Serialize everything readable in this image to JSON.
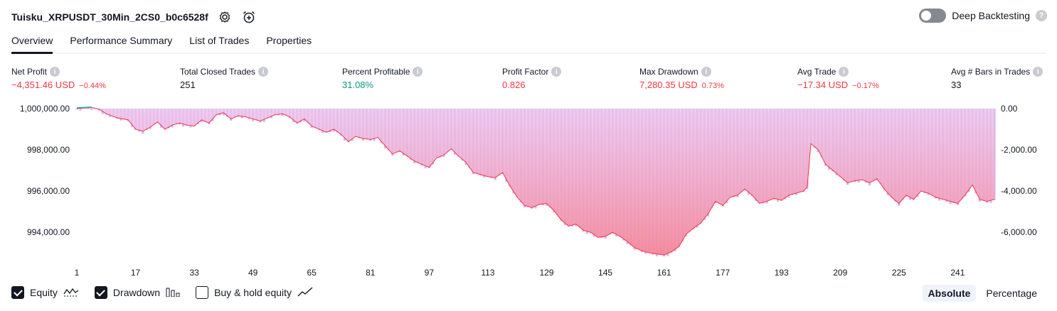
{
  "header": {
    "strategy_name": "Tuisku_XRPUSDT_30Min_2CS0_b0c6528f",
    "settings_icon": "gear-icon",
    "alert_icon": "alarm-clock-plus-icon"
  },
  "deep_backtesting": {
    "label": "Deep Backtesting",
    "enabled": false,
    "help": "?"
  },
  "tabs": [
    {
      "label": "Overview",
      "active": true
    },
    {
      "label": "Performance Summary",
      "active": false
    },
    {
      "label": "List of Trades",
      "active": false
    },
    {
      "label": "Properties",
      "active": false
    }
  ],
  "metrics": {
    "net_profit": {
      "label": "Net Profit",
      "value": "−4,351.46 USD",
      "pct": "−0.44%"
    },
    "total_closed_trades": {
      "label": "Total Closed Trades",
      "value": "251"
    },
    "percent_profitable": {
      "label": "Percent Profitable",
      "value": "31.08%"
    },
    "profit_factor": {
      "label": "Profit Factor",
      "value": "0.826"
    },
    "max_drawdown": {
      "label": "Max Drawdown",
      "value": "7,280.35 USD",
      "pct": "0.73%"
    },
    "avg_trade": {
      "label": "Avg Trade",
      "value": "−17.34 USD",
      "pct": "−0.17%"
    },
    "avg_bars": {
      "label": "Avg # Bars in Trades",
      "value": "33"
    }
  },
  "info_glyph": "i",
  "chart_data": {
    "type": "area",
    "x_ticks": [
      "1",
      "17",
      "33",
      "49",
      "65",
      "81",
      "97",
      "113",
      "129",
      "145",
      "161",
      "177",
      "193",
      "209",
      "225",
      "241"
    ],
    "y_left_ticks": [
      "1,000,000.00",
      "998,000.00",
      "996,000.00",
      "994,000.00"
    ],
    "y_right_ticks": [
      "0.00",
      "-2,000.00",
      "-4,000.00",
      "-6,000.00"
    ],
    "ylim_left": [
      992800,
      1000100
    ],
    "x_range": [
      1,
      251
    ],
    "equity_keypoints": [
      [
        1,
        1000000
      ],
      [
        5,
        1000050
      ],
      [
        7,
        999980
      ],
      [
        9,
        999750
      ],
      [
        12,
        999550
      ],
      [
        15,
        999450
      ],
      [
        17,
        999000
      ],
      [
        19,
        998900
      ],
      [
        21,
        999100
      ],
      [
        23,
        999350
      ],
      [
        25,
        999000
      ],
      [
        27,
        999200
      ],
      [
        29,
        999300
      ],
      [
        31,
        999200
      ],
      [
        33,
        999150
      ],
      [
        35,
        999450
      ],
      [
        37,
        999300
      ],
      [
        39,
        999700
      ],
      [
        41,
        999800
      ],
      [
        43,
        999500
      ],
      [
        45,
        999650
      ],
      [
        47,
        999600
      ],
      [
        49,
        999500
      ],
      [
        51,
        999400
      ],
      [
        53,
        999550
      ],
      [
        55,
        999700
      ],
      [
        57,
        999750
      ],
      [
        59,
        999600
      ],
      [
        61,
        999300
      ],
      [
        63,
        999500
      ],
      [
        65,
        999150
      ],
      [
        67,
        999000
      ],
      [
        69,
        998850
      ],
      [
        71,
        999000
      ],
      [
        73,
        998750
      ],
      [
        75,
        998400
      ],
      [
        77,
        998650
      ],
      [
        79,
        998550
      ],
      [
        81,
        998500
      ],
      [
        83,
        998600
      ],
      [
        85,
        998200
      ],
      [
        87,
        997800
      ],
      [
        89,
        997950
      ],
      [
        91,
        997700
      ],
      [
        93,
        997450
      ],
      [
        95,
        997300
      ],
      [
        97,
        997150
      ],
      [
        99,
        997600
      ],
      [
        101,
        997750
      ],
      [
        103,
        998050
      ],
      [
        105,
        997700
      ],
      [
        107,
        997400
      ],
      [
        109,
        996900
      ],
      [
        111,
        996800
      ],
      [
        113,
        996700
      ],
      [
        115,
        996650
      ],
      [
        117,
        996900
      ],
      [
        119,
        996250
      ],
      [
        121,
        995700
      ],
      [
        123,
        995300
      ],
      [
        125,
        995200
      ],
      [
        127,
        995350
      ],
      [
        129,
        995400
      ],
      [
        131,
        995050
      ],
      [
        133,
        994600
      ],
      [
        135,
        994300
      ],
      [
        137,
        994400
      ],
      [
        139,
        994100
      ],
      [
        141,
        994000
      ],
      [
        143,
        993750
      ],
      [
        145,
        993800
      ],
      [
        147,
        994000
      ],
      [
        149,
        993800
      ],
      [
        151,
        993550
      ],
      [
        153,
        993250
      ],
      [
        155,
        993100
      ],
      [
        157,
        993000
      ],
      [
        159,
        992950
      ],
      [
        161,
        992900
      ],
      [
        163,
        993050
      ],
      [
        165,
        993300
      ],
      [
        167,
        993900
      ],
      [
        169,
        994200
      ],
      [
        171,
        994450
      ],
      [
        173,
        994900
      ],
      [
        175,
        995500
      ],
      [
        177,
        995300
      ],
      [
        179,
        995700
      ],
      [
        181,
        995800
      ],
      [
        183,
        996100
      ],
      [
        185,
        995800
      ],
      [
        187,
        995400
      ],
      [
        189,
        995500
      ],
      [
        191,
        995650
      ],
      [
        193,
        995550
      ],
      [
        195,
        995800
      ],
      [
        197,
        995900
      ],
      [
        199,
        996000
      ],
      [
        200,
        996200
      ],
      [
        201,
        998300
      ],
      [
        203,
        998000
      ],
      [
        205,
        997300
      ],
      [
        207,
        997000
      ],
      [
        209,
        996700
      ],
      [
        211,
        996400
      ],
      [
        213,
        996500
      ],
      [
        215,
        996550
      ],
      [
        217,
        996400
      ],
      [
        219,
        996600
      ],
      [
        221,
        996100
      ],
      [
        223,
        995700
      ],
      [
        225,
        995400
      ],
      [
        227,
        995800
      ],
      [
        229,
        995600
      ],
      [
        231,
        996000
      ],
      [
        233,
        995900
      ],
      [
        235,
        995700
      ],
      [
        237,
        995600
      ],
      [
        239,
        995500
      ],
      [
        241,
        995400
      ],
      [
        243,
        995800
      ],
      [
        245,
        996300
      ],
      [
        247,
        995600
      ],
      [
        249,
        995500
      ],
      [
        251,
        995600
      ]
    ],
    "colors": {
      "equity_fill": "#e6b8f0",
      "equity_line": "#22ab94",
      "drawdown_fill": "#f5c2c8",
      "drawdown_line": "#f23645",
      "bar": "#d7b6f7"
    }
  },
  "legend": [
    {
      "label": "Equity",
      "checked": true,
      "icon": "equity-wave-icon"
    },
    {
      "label": "Drawdown",
      "checked": true,
      "icon": "drawdown-bars-icon"
    },
    {
      "label": "Buy & hold equity",
      "checked": false,
      "icon": "trend-line-icon"
    }
  ],
  "mode": {
    "absolute": "Absolute",
    "percentage": "Percentage",
    "selected": "Absolute"
  }
}
